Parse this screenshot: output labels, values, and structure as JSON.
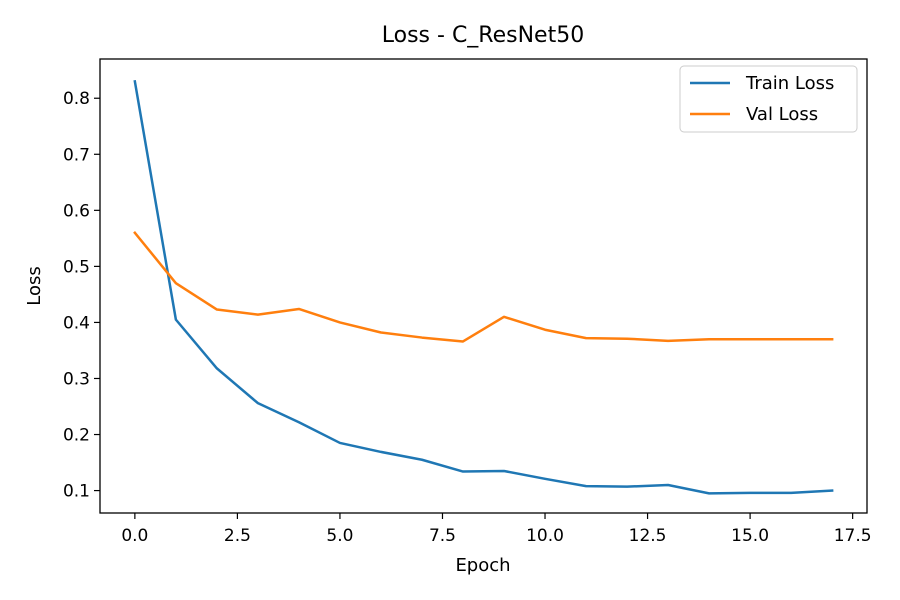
{
  "chart_data": {
    "type": "line",
    "title": "Loss - C_ResNet50",
    "xlabel": "Epoch",
    "ylabel": "Loss",
    "xlim": [
      -0.85,
      17.85
    ],
    "ylim": [
      0.06,
      0.87
    ],
    "xticks": [
      0.0,
      2.5,
      5.0,
      7.5,
      10.0,
      12.5,
      15.0,
      17.5
    ],
    "xtick_labels": [
      "0.0",
      "2.5",
      "5.0",
      "7.5",
      "10.0",
      "12.5",
      "15.0",
      "17.5"
    ],
    "yticks": [
      0.1,
      0.2,
      0.3,
      0.4,
      0.5,
      0.6,
      0.7,
      0.8
    ],
    "ytick_labels": [
      "0.1",
      "0.2",
      "0.3",
      "0.4",
      "0.5",
      "0.6",
      "0.7",
      "0.8"
    ],
    "grid": false,
    "legend_position": "top-right",
    "x": [
      0,
      1,
      2,
      3,
      4,
      5,
      6,
      7,
      8,
      9,
      10,
      11,
      12,
      13,
      14,
      15,
      16,
      17
    ],
    "series": [
      {
        "name": "Train Loss",
        "color": "#1f77b4",
        "values": [
          0.83,
          0.405,
          0.318,
          0.256,
          0.222,
          0.185,
          0.169,
          0.155,
          0.134,
          0.135,
          0.121,
          0.108,
          0.107,
          0.11,
          0.095,
          0.096,
          0.096,
          0.1
        ]
      },
      {
        "name": "Val Loss",
        "color": "#ff7f0e",
        "values": [
          0.56,
          0.47,
          0.423,
          0.414,
          0.424,
          0.4,
          0.382,
          0.373,
          0.366,
          0.41,
          0.387,
          0.372,
          0.371,
          0.367,
          0.37,
          0.37,
          0.37,
          0.37
        ]
      }
    ]
  }
}
